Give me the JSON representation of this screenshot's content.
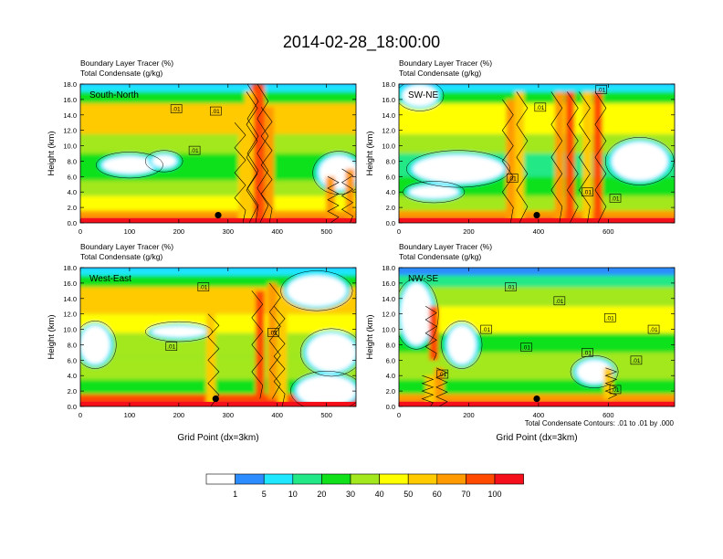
{
  "chart_data": {
    "type": "heatmap",
    "title": "2014-02-28_18:00:00",
    "panels": [
      {
        "section": "South-North",
        "line1": "Boundary Layer Tracer    (%)",
        "line2": "Total Condensate    (g/kg)",
        "ylabel": "Height (km)",
        "xlabel": "",
        "xticks": [
          "0",
          "100",
          "200",
          "300",
          "400",
          "500"
        ],
        "x_range": [
          0,
          560
        ],
        "yticks": [
          "0.0",
          "2.0",
          "4.0",
          "6.0",
          "8.0",
          "10.0",
          "12.0",
          "14.0",
          "16.0",
          "18.0"
        ],
        "y_range": [
          0,
          18
        ],
        "marker": {
          "x": 280,
          "y": 1.0
        },
        "contour_labels": [
          {
            "text": ".01",
            "x": 195,
            "y": 14.8
          },
          {
            "text": ".01",
            "x": 275,
            "y": 14.5
          },
          {
            "text": ".01",
            "x": 232,
            "y": 9.4
          }
        ],
        "columns": [
          {
            "x": 356,
            "y0": 0,
            "y1": 18,
            "v": 70
          },
          {
            "x": 365,
            "y0": 0,
            "y1": 18,
            "v": 70
          },
          {
            "x": 384,
            "y0": 0,
            "y1": 15,
            "v": 60
          },
          {
            "x": 343,
            "y0": 0,
            "y1": 17,
            "v": 50
          },
          {
            "x": 330,
            "y0": 0,
            "y1": 13,
            "v": 50
          },
          {
            "x": 508,
            "y0": 0,
            "y1": 6,
            "v": 60
          },
          {
            "x": 548,
            "y0": 0,
            "y1": 7,
            "v": 60
          }
        ],
        "clear_regions": [
          {
            "x": 100,
            "y": 7.5,
            "rx": 55,
            "ry": 1.1
          },
          {
            "x": 170,
            "y": 8.0,
            "rx": 25,
            "ry": 0.8
          },
          {
            "x": 525,
            "y": 6.5,
            "rx": 40,
            "ry": 2.2
          }
        ],
        "bands": [
          {
            "y0": 0,
            "y1": 0.6,
            "v": 100
          },
          {
            "y0": 0.6,
            "y1": 1.6,
            "v": 60
          },
          {
            "y0": 1.6,
            "y1": 3.5,
            "v": 40
          },
          {
            "y0": 3.5,
            "y1": 5.5,
            "v": 30
          },
          {
            "y0": 5.5,
            "y1": 9.0,
            "v": 20
          },
          {
            "y0": 9.0,
            "y1": 11.5,
            "v": 30
          },
          {
            "y0": 11.5,
            "y1": 15.5,
            "v": 50
          },
          {
            "y0": 15.5,
            "y1": 17.0,
            "v": 20
          },
          {
            "y0": 17.0,
            "y1": 18.0,
            "v": 5
          }
        ]
      },
      {
        "section": "SW-NE",
        "line1": "Boundary Layer Tracer    (%)",
        "line2": "Total Condensate    (g/kg)",
        "ylabel": "Height (km)",
        "xlabel": "",
        "xticks": [
          "0",
          "200",
          "400",
          "600"
        ],
        "x_range": [
          0,
          790
        ],
        "yticks": [
          "0.0",
          "2.0",
          "4.0",
          "6.0",
          "8.0",
          "10.0",
          "12.0",
          "14.0",
          "16.0",
          "18.0"
        ],
        "y_range": [
          0,
          18
        ],
        "marker": {
          "x": 395,
          "y": 1.0
        },
        "contour_labels": [
          {
            "text": ".01",
            "x": 405,
            "y": 15.0
          },
          {
            "text": ".01",
            "x": 325,
            "y": 5.8
          },
          {
            "text": ".01",
            "x": 540,
            "y": 4.0
          },
          {
            "text": ".01",
            "x": 620,
            "y": 3.2
          },
          {
            "text": ".01",
            "x": 580,
            "y": 17.3
          }
        ],
        "columns": [
          {
            "x": 320,
            "y0": 0,
            "y1": 16,
            "v": 60
          },
          {
            "x": 345,
            "y0": 0,
            "y1": 17,
            "v": 50
          },
          {
            "x": 460,
            "y0": 0,
            "y1": 17,
            "v": 60
          },
          {
            "x": 490,
            "y0": 0,
            "y1": 17,
            "v": 70
          },
          {
            "x": 540,
            "y0": 0,
            "y1": 17,
            "v": 50
          },
          {
            "x": 570,
            "y0": 0,
            "y1": 17,
            "v": 70
          }
        ],
        "clear_regions": [
          {
            "x": 170,
            "y": 7.0,
            "rx": 130,
            "ry": 1.8
          },
          {
            "x": 100,
            "y": 4.0,
            "rx": 70,
            "ry": 0.8
          },
          {
            "x": 690,
            "y": 8.0,
            "rx": 80,
            "ry": 2.5
          },
          {
            "x": 60,
            "y": 16.5,
            "rx": 50,
            "ry": 1.4
          }
        ],
        "bands": [
          {
            "y0": 0,
            "y1": 0.6,
            "v": 100
          },
          {
            "y0": 0.6,
            "y1": 1.6,
            "v": 60
          },
          {
            "y0": 1.6,
            "y1": 3.5,
            "v": 30
          },
          {
            "y0": 3.5,
            "y1": 6.0,
            "v": 20
          },
          {
            "y0": 6.0,
            "y1": 9.0,
            "v": 10
          },
          {
            "y0": 9.0,
            "y1": 11.5,
            "v": 30
          },
          {
            "y0": 11.5,
            "y1": 15.5,
            "v": 40
          },
          {
            "y0": 15.5,
            "y1": 17.0,
            "v": 20
          },
          {
            "y0": 17.0,
            "y1": 18.0,
            "v": 5
          }
        ]
      },
      {
        "section": "West-East",
        "line1": "Boundary Layer Tracer    (%)",
        "line2": "Total Condensate    (g/kg)",
        "ylabel": "Height (km)",
        "xlabel": "Grid Point (dx=3km)",
        "xticks": [
          "0",
          "100",
          "200",
          "300",
          "400",
          "500"
        ],
        "x_range": [
          0,
          560
        ],
        "yticks": [
          "0.0",
          "2.0",
          "4.0",
          "6.0",
          "8.0",
          "10.0",
          "12.0",
          "14.0",
          "16.0",
          "18.0"
        ],
        "y_range": [
          0,
          18
        ],
        "marker": {
          "x": 275,
          "y": 1.0
        },
        "contour_labels": [
          {
            "text": ".01",
            "x": 250,
            "y": 15.5
          },
          {
            "text": ".01",
            "x": 185,
            "y": 7.8
          },
          {
            "text": ".01",
            "x": 392,
            "y": 9.6
          }
        ],
        "columns": [
          {
            "x": 365,
            "y0": 1,
            "y1": 15,
            "v": 70
          },
          {
            "x": 390,
            "y0": 1,
            "y1": 16,
            "v": 60
          },
          {
            "x": 410,
            "y0": 0,
            "y1": 13,
            "v": 50
          },
          {
            "x": 265,
            "y0": 0,
            "y1": 12,
            "v": 50
          }
        ],
        "clear_regions": [
          {
            "x": 30,
            "y": 8.0,
            "rx": 30,
            "ry": 2.5
          },
          {
            "x": 200,
            "y": 9.7,
            "rx": 55,
            "ry": 0.7
          },
          {
            "x": 510,
            "y": 7.0,
            "rx": 50,
            "ry": 2.5
          },
          {
            "x": 480,
            "y": 15.0,
            "rx": 60,
            "ry": 2.0
          },
          {
            "x": 500,
            "y": 2.0,
            "rx": 60,
            "ry": 2.0
          }
        ],
        "bands": [
          {
            "y0": 0,
            "y1": 0.6,
            "v": 100
          },
          {
            "y0": 0.6,
            "y1": 1.6,
            "v": 70
          },
          {
            "y0": 1.6,
            "y1": 3.5,
            "v": 20
          },
          {
            "y0": 3.5,
            "y1": 6.5,
            "v": 30
          },
          {
            "y0": 6.5,
            "y1": 9.5,
            "v": 30
          },
          {
            "y0": 9.5,
            "y1": 12.0,
            "v": 40
          },
          {
            "y0": 12.0,
            "y1": 15.5,
            "v": 50
          },
          {
            "y0": 15.5,
            "y1": 17.0,
            "v": 20
          },
          {
            "y0": 17.0,
            "y1": 18.0,
            "v": 5
          }
        ]
      },
      {
        "section": "NW-SE",
        "line1": "Boundary Layer Tracer    (%)",
        "line2": "Total Condensate    (g/kg)",
        "ylabel": "Height (km)",
        "xlabel": "Grid Point (dx=3km)",
        "xticks": [
          "0",
          "200",
          "400",
          "600"
        ],
        "x_range": [
          0,
          790
        ],
        "yticks": [
          "0.0",
          "2.0",
          "4.0",
          "6.0",
          "8.0",
          "10.0",
          "12.0",
          "14.0",
          "16.0",
          "18.0"
        ],
        "y_range": [
          0,
          18
        ],
        "marker": {
          "x": 395,
          "y": 1.0
        },
        "contour_labels": [
          {
            "text": ".01",
            "x": 320,
            "y": 15.5
          },
          {
            "text": ".01",
            "x": 460,
            "y": 13.7
          },
          {
            "text": ".01",
            "x": 250,
            "y": 10.0
          },
          {
            "text": ".01",
            "x": 365,
            "y": 7.7
          },
          {
            "text": ".01",
            "x": 540,
            "y": 7.0
          },
          {
            "text": ".01",
            "x": 605,
            "y": 11.5
          },
          {
            "text": ".01",
            "x": 730,
            "y": 10.0
          },
          {
            "text": ".01",
            "x": 680,
            "y": 6.0
          },
          {
            "text": ".01",
            "x": 125,
            "y": 4.2
          },
          {
            "text": ".01",
            "x": 620,
            "y": 2.2
          }
        ],
        "columns": [
          {
            "x": 100,
            "y0": 6,
            "y1": 13,
            "v": 70
          },
          {
            "x": 115,
            "y0": 0,
            "y1": 5,
            "v": 60
          },
          {
            "x": 90,
            "y0": 0,
            "y1": 4,
            "v": 50
          },
          {
            "x": 600,
            "y0": 1,
            "y1": 5,
            "v": 50
          }
        ],
        "clear_regions": [
          {
            "x": 50,
            "y": 12.0,
            "rx": 45,
            "ry": 4.0
          },
          {
            "x": 180,
            "y": 8.0,
            "rx": 40,
            "ry": 2.5
          },
          {
            "x": 560,
            "y": 4.5,
            "rx": 50,
            "ry": 1.5
          }
        ],
        "bands": [
          {
            "y0": 0,
            "y1": 0.6,
            "v": 100
          },
          {
            "y0": 0.6,
            "y1": 1.6,
            "v": 60
          },
          {
            "y0": 1.6,
            "y1": 3.5,
            "v": 20
          },
          {
            "y0": 3.5,
            "y1": 7.0,
            "v": 30
          },
          {
            "y0": 7.0,
            "y1": 9.5,
            "v": 20
          },
          {
            "y0": 9.5,
            "y1": 13.0,
            "v": 40
          },
          {
            "y0": 13.0,
            "y1": 15.5,
            "v": 30
          },
          {
            "y0": 15.5,
            "y1": 17.0,
            "v": 10
          },
          {
            "y0": 17.0,
            "y1": 18.0,
            "v": 1
          }
        ]
      }
    ],
    "contour_note": "Total Condensate Contours: .01 to .01 by .000",
    "colorbar": {
      "labels": [
        "1",
        "5",
        "10",
        "20",
        "30",
        "40",
        "50",
        "60",
        "70",
        "100"
      ],
      "levels": [
        0,
        1,
        5,
        10,
        20,
        30,
        40,
        50,
        60,
        70,
        100
      ],
      "colors": [
        "#ffffff",
        "#2b8cff",
        "#1ee7ff",
        "#22e886",
        "#11e11a",
        "#a2e81c",
        "#ffff00",
        "#ffca00",
        "#ff9a00",
        "#ff4a00",
        "#f50f1a"
      ]
    }
  }
}
